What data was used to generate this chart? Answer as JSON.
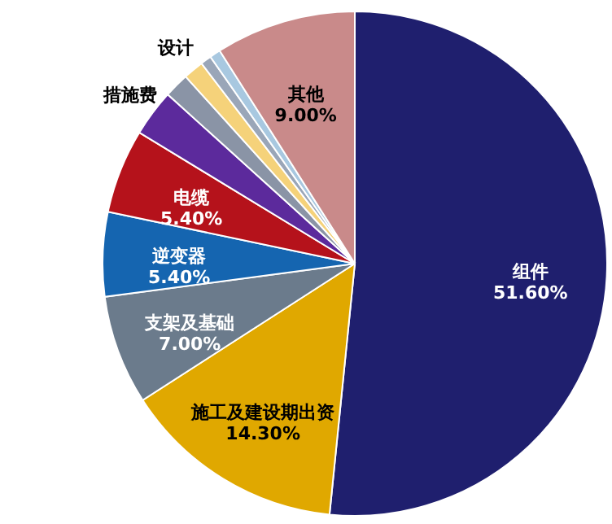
{
  "chart_data": {
    "type": "pie",
    "categories": [
      "组件",
      "施工及建设期出资",
      "支架及基础",
      "逆变器",
      "电缆",
      "措施费",
      null,
      "设计",
      null,
      null,
      "其他"
    ],
    "values": [
      51.6,
      14.3,
      7.0,
      5.4,
      5.4,
      3.0,
      1.6,
      1.3,
      0.7,
      0.7,
      9.0
    ],
    "value_labels": [
      "51.60%",
      "14.30%",
      "7.00%",
      "5.40%",
      "5.40%",
      null,
      null,
      null,
      null,
      null,
      "9.00%"
    ],
    "colors": [
      "#1f1f6e",
      "#e0a800",
      "#6b7b8c",
      "#1565b0",
      "#b5121b",
      "#5c2a9c",
      "#8a94a6",
      "#f5d27a",
      "#9aa6b8",
      "#a8c8e0",
      "#c98a8a"
    ]
  }
}
